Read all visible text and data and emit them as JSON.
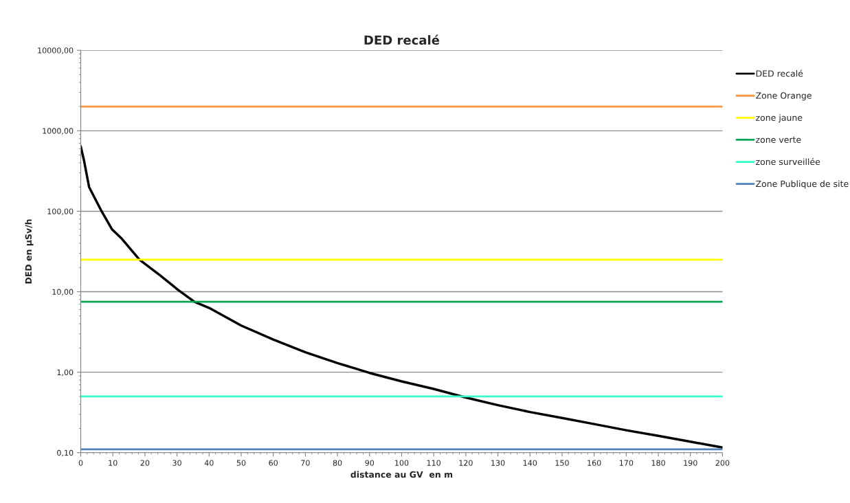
{
  "chart_data": {
    "type": "line",
    "title": "DED recalé",
    "xlabel": "distance au GV  en m",
    "ylabel": "DED en µSv/h",
    "log": "y",
    "grid": "y",
    "legend": "right",
    "marker": "none",
    "line_style": "solid",
    "xlim": [
      0,
      200
    ],
    "xticks": [
      0,
      10,
      20,
      30,
      40,
      50,
      60,
      70,
      80,
      90,
      100,
      110,
      120,
      130,
      140,
      150,
      160,
      170,
      180,
      190,
      200
    ],
    "ylim": [
      0.1,
      10000
    ],
    "yticks": [
      {
        "value": 0.1,
        "label": "0,10"
      },
      {
        "value": 1,
        "label": "1,00"
      },
      {
        "value": 10,
        "label": "10,00"
      },
      {
        "value": 100,
        "label": "100,00"
      },
      {
        "value": 1000,
        "label": "1000,00"
      },
      {
        "value": 10000,
        "label": "10000,00"
      }
    ],
    "series": [
      {
        "name": "DED recalé",
        "color": "#000000",
        "x": [
          0,
          1,
          2.6,
          6.5,
          9.7,
          12.6,
          18.3,
          24.7,
          30.4,
          35.4,
          40,
          50,
          60,
          70,
          80,
          90,
          100,
          110,
          120,
          130,
          140,
          150,
          160,
          170,
          180,
          190,
          200
        ],
        "values": [
          640,
          430,
          200,
          100,
          60,
          46.5,
          25,
          16,
          10.5,
          7.5,
          6.3,
          3.8,
          2.55,
          1.77,
          1.3,
          0.98,
          0.77,
          0.62,
          0.485,
          0.39,
          0.32,
          0.27,
          0.227,
          0.19,
          0.162,
          0.137,
          0.116
        ]
      },
      {
        "name": "Zone Orange",
        "color": "#f79646",
        "x": [
          0,
          200
        ],
        "values": [
          2000,
          2000
        ]
      },
      {
        "name": "zone jaune",
        "color": "#ffff00",
        "x": [
          0,
          200
        ],
        "values": [
          25,
          25
        ]
      },
      {
        "name": "zone verte",
        "color": "#00a650",
        "x": [
          0,
          200
        ],
        "values": [
          7.5,
          7.5
        ]
      },
      {
        "name": "zone surveillée",
        "color": "#33ffcc",
        "x": [
          0,
          200
        ],
        "values": [
          0.5,
          0.5
        ]
      },
      {
        "name": "Zone Publique de site",
        "color": "#4f81bd",
        "x": [
          0,
          200
        ],
        "values": [
          0.11,
          0.11
        ]
      }
    ]
  }
}
